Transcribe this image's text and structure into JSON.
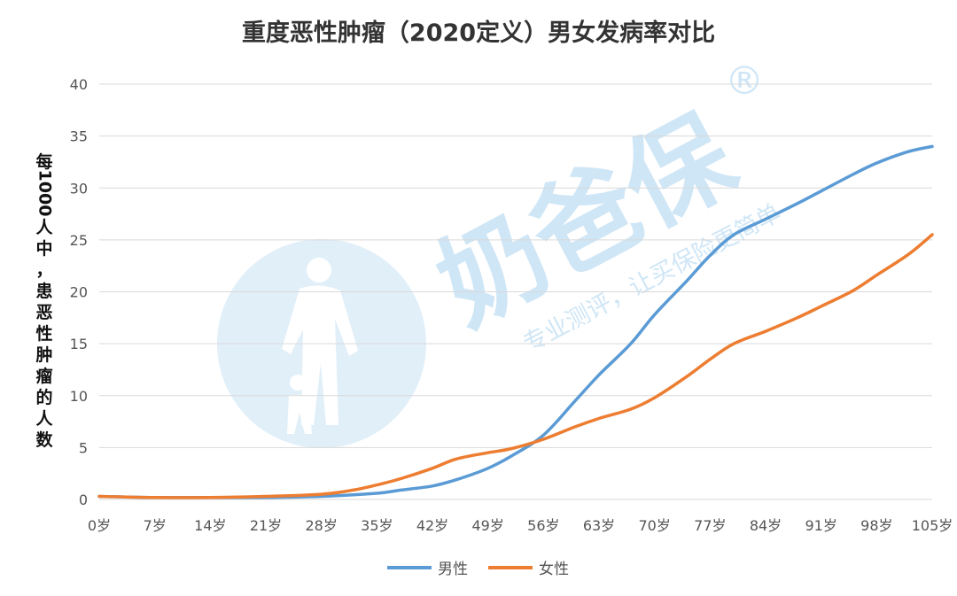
{
  "chart_data": {
    "type": "line",
    "title": "重度恶性肿瘤（2020定义）男女发病率对比",
    "xlabel": "",
    "ylabel": "每1000人中，患恶性肿瘤的人数",
    "ylabel_chars": [
      "每",
      "1000",
      "人",
      "中",
      "，",
      "患",
      "恶",
      "性",
      "肿",
      "瘤",
      "的",
      "人",
      "数"
    ],
    "ylim": [
      0,
      40
    ],
    "yticks": [
      0,
      5,
      10,
      15,
      20,
      25,
      30,
      35,
      40
    ],
    "xlim": [
      0,
      105
    ],
    "xticks": [
      0,
      7,
      14,
      21,
      28,
      35,
      42,
      49,
      56,
      63,
      70,
      77,
      84,
      91,
      98,
      105
    ],
    "xtick_labels": [
      "0岁",
      "7岁",
      "14岁",
      "21岁",
      "28岁",
      "35岁",
      "42岁",
      "49岁",
      "56岁",
      "63岁",
      "70岁",
      "77岁",
      "84岁",
      "91岁",
      "98岁",
      "105岁"
    ],
    "grid": true,
    "legend": "bottom",
    "series": [
      {
        "name": "男性",
        "color": "#5b9bd5",
        "x": [
          0,
          7,
          14,
          21,
          28,
          35,
          38,
          42,
          45,
          49,
          52,
          56,
          60,
          63,
          67,
          70,
          74,
          77,
          80,
          84,
          88,
          91,
          95,
          98,
          102,
          105
        ],
        "y": [
          0.3,
          0.2,
          0.2,
          0.2,
          0.3,
          0.6,
          0.9,
          1.3,
          1.9,
          3.0,
          4.2,
          6.2,
          9.5,
          12.0,
          15.0,
          17.8,
          21.0,
          23.5,
          25.5,
          27.0,
          28.5,
          29.7,
          31.3,
          32.4,
          33.5,
          34.0
        ]
      },
      {
        "name": "女性",
        "color": "#ed7d31",
        "x": [
          0,
          7,
          14,
          21,
          28,
          32,
          35,
          38,
          42,
          45,
          49,
          52,
          56,
          60,
          63,
          67,
          70,
          74,
          77,
          80,
          84,
          88,
          91,
          95,
          98,
          102,
          105
        ],
        "y": [
          0.3,
          0.2,
          0.2,
          0.3,
          0.5,
          0.9,
          1.4,
          2.0,
          3.0,
          3.9,
          4.5,
          4.9,
          5.8,
          7.0,
          7.8,
          8.7,
          9.8,
          11.8,
          13.5,
          15.0,
          16.2,
          17.5,
          18.6,
          20.1,
          21.6,
          23.6,
          25.5
        ]
      }
    ]
  },
  "watermark": {
    "brand": "奶爸保",
    "slogan": "专业测评，让买保险更简单",
    "registered": "®"
  }
}
